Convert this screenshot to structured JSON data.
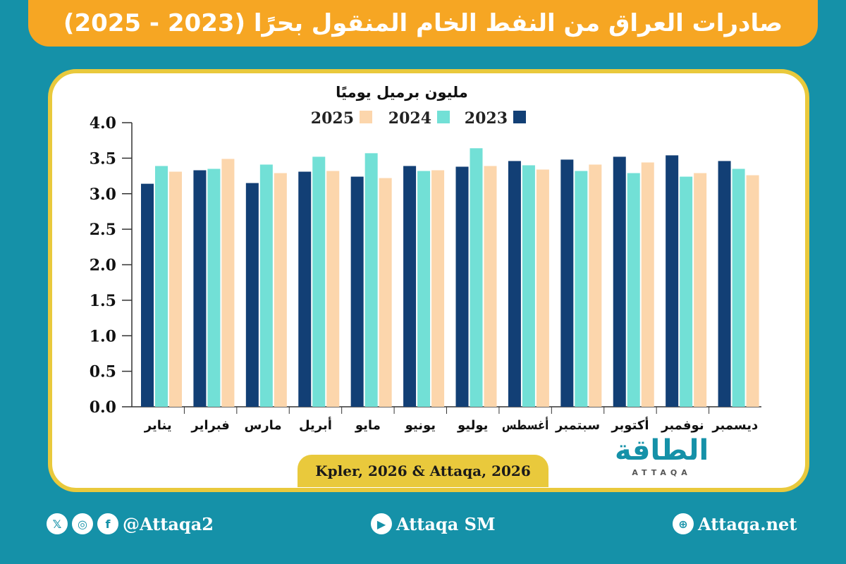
{
  "title": "صادرات العراق من النفط الخام المنقول بحرًا (2023 - 2025)",
  "source": "Kpler, 2026 & Attaqa, 2026",
  "logo": {
    "text": "الطاقة",
    "sub": "ATTAQA"
  },
  "footer": {
    "social": "@Attaqa2",
    "youtube": "Attaqa SM",
    "web": "Attaqa.net",
    "icons": [
      "x-icon",
      "instagram-icon",
      "facebook-icon",
      "youtube-icon",
      "globe-icon"
    ]
  },
  "chart_data": {
    "type": "bar",
    "ylabel": "مليون برميل يوميًا",
    "ylim": [
      0,
      4
    ],
    "yticks": [
      "0.0",
      "0.5",
      "1.0",
      "1.5",
      "2.0",
      "2.5",
      "3.0",
      "3.5",
      "4.0"
    ],
    "grid": false,
    "legend_placement": "top",
    "categories": [
      "يناير",
      "فبراير",
      "مارس",
      "أبريل",
      "مايو",
      "يونيو",
      "يوليو",
      "أغسطس",
      "سبتمبر",
      "أكتوبر",
      "نوفمبر",
      "ديسمبر"
    ],
    "series": [
      {
        "name": "2023",
        "color": "#123f75",
        "values": [
          3.14,
          3.33,
          3.15,
          3.31,
          3.24,
          3.39,
          3.38,
          3.46,
          3.48,
          3.52,
          3.54,
          3.46
        ]
      },
      {
        "name": "2024",
        "color": "#72e0d6",
        "values": [
          3.39,
          3.35,
          3.41,
          3.52,
          3.57,
          3.32,
          3.64,
          3.4,
          3.32,
          3.29,
          3.24,
          3.35
        ]
      },
      {
        "name": "2025",
        "color": "#fcd6ac",
        "values": [
          3.31,
          3.49,
          3.29,
          3.32,
          3.22,
          3.33,
          3.39,
          3.34,
          3.41,
          3.44,
          3.29,
          3.26
        ]
      }
    ]
  }
}
